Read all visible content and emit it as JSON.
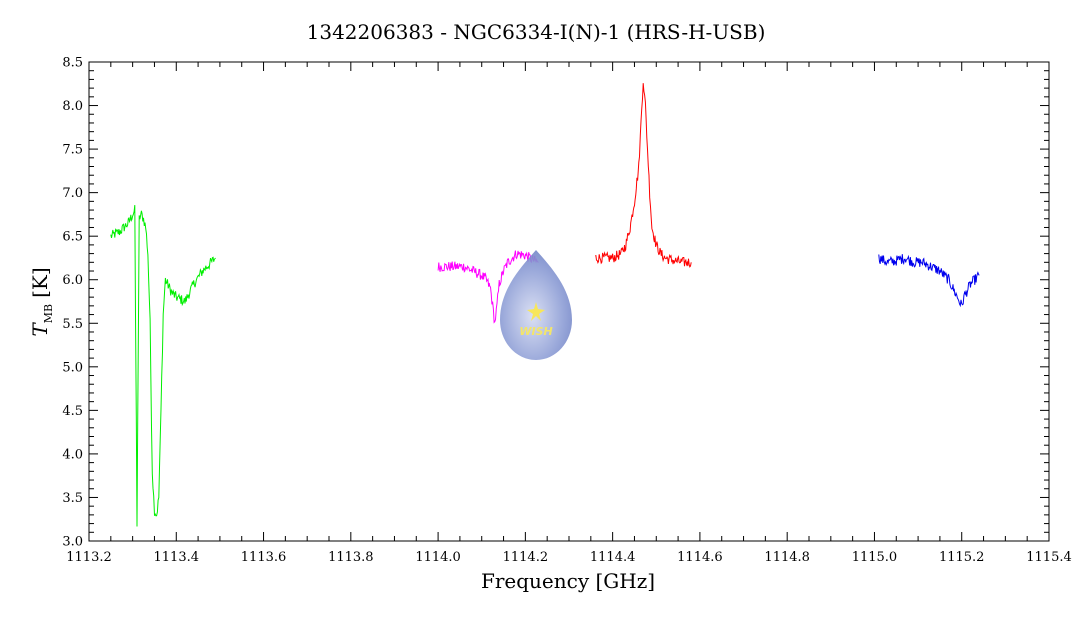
{
  "chart_data": {
    "type": "line",
    "title": "1342206383 - NGC6334-I(N)-1 (HRS-H-USB)",
    "xlabel": "Frequency [GHz]",
    "ylabel": {
      "symbol": "T",
      "subscript": "MB",
      "unit": "[K]"
    },
    "xlim": [
      1113.2,
      1115.4
    ],
    "ylim": [
      3.0,
      8.5
    ],
    "x_ticks": [
      "1113.2",
      "1113.4",
      "1113.6",
      "1113.8",
      "1114.0",
      "1114.2",
      "1114.4",
      "1114.6",
      "1114.8",
      "1115.0",
      "1115.2",
      "1115.4"
    ],
    "y_ticks": [
      "3.0",
      "3.5",
      "4.0",
      "4.5",
      "5.0",
      "5.5",
      "6.0",
      "6.5",
      "7.0",
      "7.5",
      "8.0",
      "8.5"
    ],
    "grid": false,
    "series": [
      {
        "color": "#00ee00",
        "x": [
          1113.25,
          1113.27,
          1113.29,
          1113.3,
          1113.305,
          1113.31,
          1113.315,
          1113.32,
          1113.325,
          1113.33,
          1113.335,
          1113.34,
          1113.345,
          1113.35,
          1113.355,
          1113.36,
          1113.365,
          1113.37,
          1113.375,
          1113.38,
          1113.39,
          1113.4,
          1113.42,
          1113.44,
          1113.46,
          1113.48,
          1113.49
        ],
        "y": [
          6.5,
          6.55,
          6.65,
          6.75,
          6.8,
          3.2,
          6.7,
          6.75,
          6.7,
          6.6,
          6.3,
          5.5,
          3.8,
          3.35,
          3.3,
          3.5,
          4.5,
          5.6,
          6.0,
          5.95,
          5.85,
          5.8,
          5.75,
          5.95,
          6.1,
          6.2,
          6.25
        ]
      },
      {
        "color": "#ff00ff",
        "x": [
          1114.0,
          1114.02,
          1114.04,
          1114.06,
          1114.08,
          1114.1,
          1114.11,
          1114.12,
          1114.125,
          1114.13,
          1114.135,
          1114.14,
          1114.15,
          1114.16,
          1114.17,
          1114.18,
          1114.2,
          1114.22,
          1114.23
        ],
        "y": [
          6.15,
          6.15,
          6.15,
          6.15,
          6.1,
          6.05,
          6.0,
          5.9,
          5.7,
          5.5,
          5.7,
          5.95,
          6.1,
          6.2,
          6.25,
          6.3,
          6.28,
          6.22,
          6.2
        ]
      },
      {
        "color": "#ff0000",
        "x": [
          1114.36,
          1114.38,
          1114.4,
          1114.42,
          1114.43,
          1114.44,
          1114.45,
          1114.46,
          1114.465,
          1114.47,
          1114.475,
          1114.48,
          1114.485,
          1114.49,
          1114.5,
          1114.51,
          1114.52,
          1114.54,
          1114.56,
          1114.58
        ],
        "y": [
          6.25,
          6.25,
          6.25,
          6.3,
          6.4,
          6.6,
          6.9,
          7.3,
          7.8,
          8.3,
          8.0,
          7.5,
          7.0,
          6.6,
          6.4,
          6.3,
          6.25,
          6.22,
          6.2,
          6.2
        ]
      },
      {
        "color": "#0000ee",
        "x": [
          1115.01,
          1115.03,
          1115.05,
          1115.07,
          1115.09,
          1115.11,
          1115.13,
          1115.15,
          1115.17,
          1115.18,
          1115.19,
          1115.195,
          1115.2,
          1115.205,
          1115.21,
          1115.22,
          1115.23,
          1115.24
        ],
        "y": [
          6.25,
          6.2,
          6.22,
          6.25,
          6.2,
          6.2,
          6.15,
          6.1,
          6.0,
          5.9,
          5.8,
          5.75,
          5.7,
          5.8,
          5.85,
          5.95,
          6.0,
          6.05
        ]
      }
    ]
  },
  "logo": {
    "text": "WISH"
  }
}
